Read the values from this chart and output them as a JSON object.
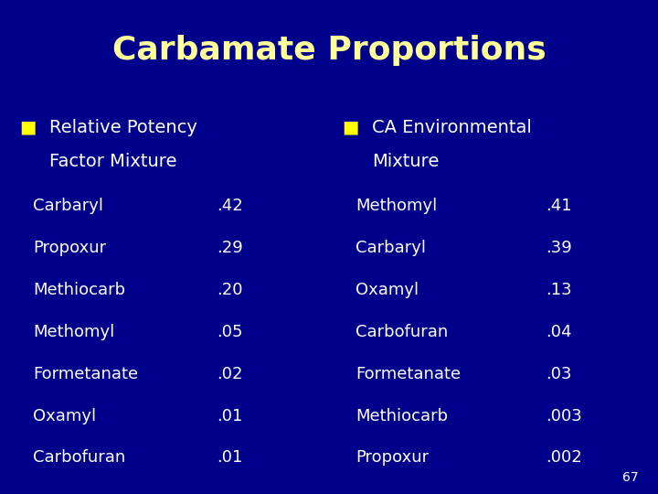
{
  "title": "Carbamate Proportions",
  "title_color": "#FFFF99",
  "background_color": "#00008B",
  "text_color": "#FFFFFF",
  "bullet_color": "#FFFF00",
  "page_number": "67",
  "left_header_bullet": "■",
  "left_header_line1": "Relative Potency",
  "left_header_line2": "Factor Mixture",
  "right_header_bullet": "■",
  "right_header_line1": "CA Environmental",
  "right_header_line2": "Mixture",
  "left_items": [
    [
      "Carbaryl",
      ".42"
    ],
    [
      "Propoxur",
      ".29"
    ],
    [
      "Methiocarb",
      ".20"
    ],
    [
      "Methomyl",
      ".05"
    ],
    [
      "Formetanate",
      ".02"
    ],
    [
      "Oxamyl",
      ".01"
    ],
    [
      "Carbofuran",
      ".01"
    ]
  ],
  "right_items": [
    [
      "Methomyl",
      ".41"
    ],
    [
      "Carbaryl",
      ".39"
    ],
    [
      "Oxamyl",
      ".13"
    ],
    [
      "Carbofuran",
      ".04"
    ],
    [
      "Formetanate",
      ".03"
    ],
    [
      "Methiocarb",
      ".003"
    ],
    [
      "Propoxur",
      ".002"
    ]
  ]
}
